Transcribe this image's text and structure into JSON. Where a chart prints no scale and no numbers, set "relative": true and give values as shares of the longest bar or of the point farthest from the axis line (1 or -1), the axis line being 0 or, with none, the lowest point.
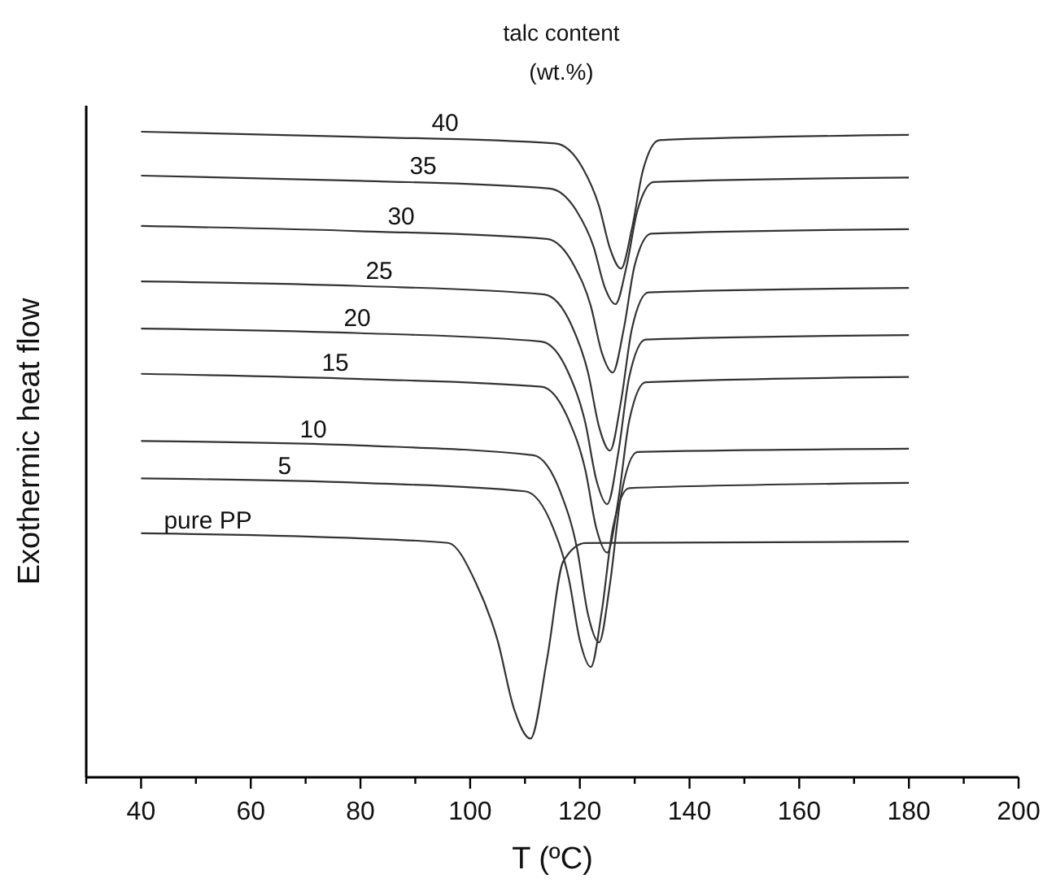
{
  "chart_data": {
    "type": "line",
    "relative": true,
    "legend_title": "talc content (wt.%)",
    "xlabel": "T (ºC)",
    "ylabel": "Exothermic heat flow",
    "xlim": [
      30,
      200
    ],
    "xticks": [
      {
        "value": 30,
        "label": null
      },
      40,
      {
        "value": 50,
        "label": null
      },
      60,
      {
        "value": 70,
        "label": null
      },
      80,
      {
        "value": 90,
        "label": null
      },
      100,
      {
        "value": 110,
        "label": null
      },
      120,
      {
        "value": 130,
        "label": null
      },
      140,
      {
        "value": 150,
        "label": null
      },
      160,
      {
        "value": 170,
        "label": null
      },
      180,
      {
        "value": 190,
        "label": null
      },
      200
    ],
    "grid": false,
    "marker": "none",
    "line_style": "solid",
    "series": [
      {
        "name": "40",
        "color": "#333333",
        "x": [
          40,
          80,
          115.5,
          120.5,
          123.5,
          125.5,
          127.5,
          129.5,
          131.5,
          134.5,
          180
        ],
        "values": [
          1.0,
          0.992,
          0.982,
          0.944,
          0.885,
          0.819,
          0.788,
          0.85,
          0.94,
          0.987,
          0.995
        ]
      },
      {
        "name": "35",
        "color": "#333333",
        "x": [
          40,
          80,
          114.5,
          119.5,
          122.5,
          124.5,
          126.5,
          128.5,
          130.5,
          133.5,
          180
        ],
        "values": [
          0.932,
          0.924,
          0.912,
          0.876,
          0.822,
          0.76,
          0.733,
          0.791,
          0.878,
          0.922,
          0.929
        ]
      },
      {
        "name": "30",
        "color": "#333333",
        "x": [
          40,
          80,
          114,
          119,
          122,
          124,
          126,
          128,
          130,
          133,
          180
        ],
        "values": [
          0.854,
          0.846,
          0.834,
          0.792,
          0.73,
          0.658,
          0.627,
          0.694,
          0.793,
          0.842,
          0.849
        ]
      },
      {
        "name": "25",
        "color": "#333333",
        "x": [
          40,
          80,
          113.5,
          118.5,
          121.5,
          123.5,
          125.5,
          127.5,
          129.5,
          132.5,
          180
        ],
        "values": [
          0.768,
          0.761,
          0.748,
          0.7,
          0.627,
          0.543,
          0.506,
          0.582,
          0.695,
          0.751,
          0.758
        ]
      },
      {
        "name": "20",
        "color": "#333333",
        "x": [
          40,
          80,
          113,
          118,
          121,
          123,
          125,
          127,
          129,
          132,
          180
        ],
        "values": [
          0.695,
          0.688,
          0.675,
          0.625,
          0.549,
          0.461,
          0.423,
          0.502,
          0.62,
          0.678,
          0.685
        ]
      },
      {
        "name": "15",
        "color": "#333333",
        "x": [
          40,
          80,
          113,
          118,
          121,
          123,
          125,
          127,
          129,
          132,
          180
        ],
        "values": [
          0.625,
          0.617,
          0.605,
          0.553,
          0.476,
          0.386,
          0.348,
          0.429,
          0.552,
          0.612,
          0.62
        ]
      },
      {
        "name": "10",
        "color": "#333333",
        "x": [
          40,
          80,
          111.5,
          116.5,
          119.5,
          121.5,
          123.5,
          125.5,
          127.5,
          130.5,
          180
        ],
        "values": [
          0.521,
          0.514,
          0.499,
          0.441,
          0.354,
          0.252,
          0.209,
          0.3,
          0.436,
          0.504,
          0.509
        ]
      },
      {
        "name": "5",
        "color": "#333333",
        "x": [
          40,
          80,
          110,
          115,
          118,
          120,
          122,
          124,
          126,
          129,
          180
        ],
        "values": [
          0.463,
          0.456,
          0.443,
          0.389,
          0.307,
          0.212,
          0.171,
          0.257,
          0.385,
          0.448,
          0.456
        ]
      },
      {
        "name": "pure PP",
        "color": "#333333",
        "x": [
          40,
          80,
          96,
          101,
          105,
          108,
          111,
          114,
          117,
          121,
          180
        ],
        "values": [
          0.378,
          0.37,
          0.363,
          0.302,
          0.212,
          0.106,
          0.06,
          0.182,
          0.335,
          0.363,
          0.365
        ]
      }
    ]
  }
}
